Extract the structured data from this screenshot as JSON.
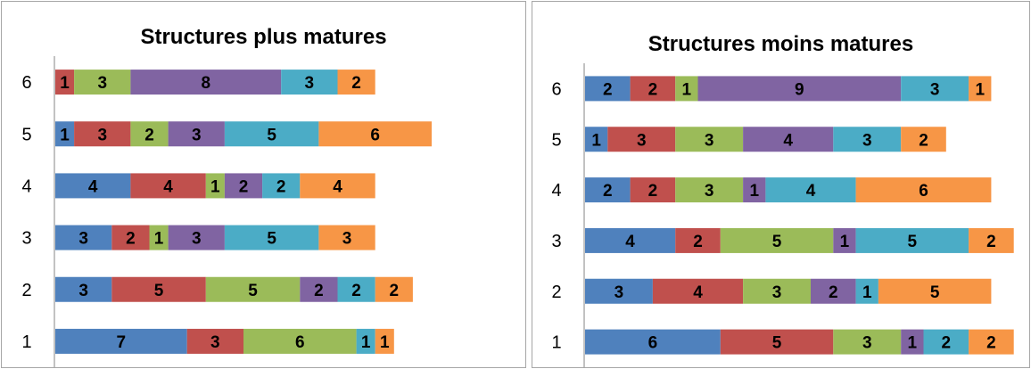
{
  "chart_data": [
    {
      "type": "bar",
      "orientation": "horizontal",
      "stacked": true,
      "title": "Structures plus matures",
      "xlabel": "",
      "ylabel": "",
      "categories": [
        "1",
        "2",
        "3",
        "4",
        "5",
        "6"
      ],
      "series_colors": [
        "#4f81bd",
        "#c0504d",
        "#9bbb59",
        "#8064a2",
        "#4bacc6",
        "#f79646"
      ],
      "series": [
        {
          "values": [
            7,
            3,
            3,
            4,
            1,
            0
          ]
        },
        {
          "values": [
            3,
            5,
            2,
            4,
            3,
            1
          ]
        },
        {
          "values": [
            6,
            5,
            1,
            1,
            2,
            3
          ]
        },
        {
          "values": [
            0,
            2,
            3,
            2,
            3,
            8
          ]
        },
        {
          "values": [
            1,
            2,
            5,
            2,
            5,
            3
          ]
        },
        {
          "values": [
            1,
            2,
            3,
            4,
            6,
            2
          ]
        }
      ],
      "data_labels": true,
      "grid": false,
      "legend": "none"
    },
    {
      "type": "bar",
      "orientation": "horizontal",
      "stacked": true,
      "title": "Structures moins matures",
      "xlabel": "",
      "ylabel": "",
      "categories": [
        "1",
        "2",
        "3",
        "4",
        "5",
        "6"
      ],
      "series_colors": [
        "#4f81bd",
        "#c0504d",
        "#9bbb59",
        "#8064a2",
        "#4bacc6",
        "#f79646"
      ],
      "series": [
        {
          "values": [
            6,
            3,
            4,
            2,
            1,
            2
          ]
        },
        {
          "values": [
            5,
            4,
            2,
            2,
            3,
            2
          ]
        },
        {
          "values": [
            3,
            3,
            5,
            3,
            3,
            1
          ]
        },
        {
          "values": [
            1,
            2,
            1,
            1,
            4,
            9
          ]
        },
        {
          "values": [
            2,
            1,
            5,
            4,
            3,
            3
          ]
        },
        {
          "values": [
            2,
            5,
            2,
            6,
            2,
            1
          ]
        }
      ],
      "data_labels": true,
      "grid": false,
      "legend": "none"
    }
  ]
}
